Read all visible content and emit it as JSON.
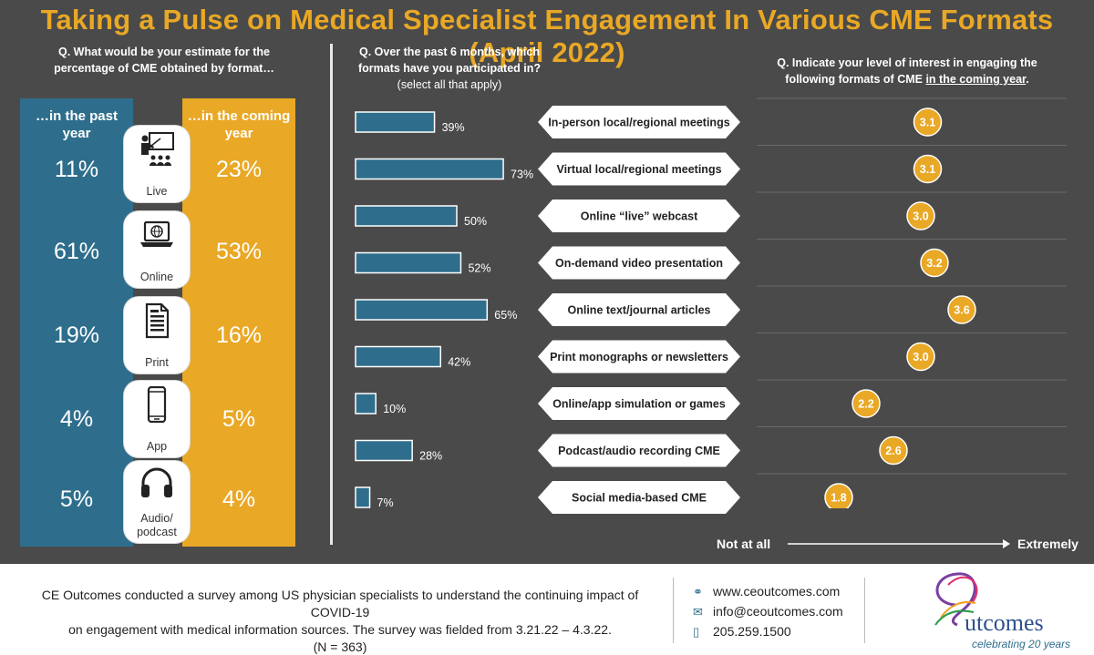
{
  "title": "Taking a Pulse on Medical Specialist Engagement In Various CME Formats (April 2022)",
  "q1": {
    "line1": "Q. What would be your estimate for the",
    "line2": "percentage of CME obtained by format…",
    "past_head_1": "…in the past",
    "past_head_2": "year",
    "coming_head_1": "…in the coming",
    "coming_head_2": "year"
  },
  "q2": {
    "line1": "Q. Over the past 6 months, which",
    "line2": "formats have you participated in?",
    "line3": "(select all that apply)"
  },
  "q3": {
    "line1": "Q. Indicate your level of interest in engaging the",
    "line2_pre": "following formats of CME ",
    "line2_u": "in the coming year",
    "line2_post": "."
  },
  "scale": {
    "low": "Not at all",
    "high": "Extremely"
  },
  "footer": {
    "text1": "CE Outcomes conducted a survey among US physician specialists to understand the continuing impact of COVID-19",
    "text2": "on engagement with medical information sources. The survey was fielded from 3.21.22 – 4.3.22.",
    "text3": "(N = 363)",
    "web": "www.ceoutcomes.com",
    "email": "info@ceoutcomes.com",
    "phone": "205.259.1500",
    "logo_text": "utcomes",
    "tagline": "celebrating 20 years"
  },
  "colors": {
    "blue": "#2e6e8c",
    "gold": "#e9a825",
    "bg": "#4a4a4a"
  },
  "chart_data": [
    {
      "type": "table",
      "title": "Q. What would be your estimate for the percentage of CME obtained by format…",
      "formats": [
        "Live",
        "Online",
        "Print",
        "App",
        "Audio/podcast"
      ],
      "format_label_lines": [
        [
          "Live"
        ],
        [
          "Online"
        ],
        [
          "Print"
        ],
        [
          "App"
        ],
        [
          "Audio/",
          "podcast"
        ]
      ],
      "format_icons": [
        "presenter-icon",
        "laptop-globe-icon",
        "document-icon",
        "smartphone-icon",
        "headphones-icon"
      ],
      "series": [
        {
          "name": "…in the past year",
          "labels": [
            "11%",
            "61%",
            "19%",
            "4%",
            "5%"
          ],
          "values": [
            11,
            61,
            19,
            4,
            5
          ]
        },
        {
          "name": "…in the coming year",
          "labels": [
            "23%",
            "53%",
            "16%",
            "5%",
            "4%"
          ],
          "values": [
            23,
            53,
            16,
            5,
            4
          ]
        }
      ]
    },
    {
      "type": "bar",
      "title": "Q. Over the past 6 months, which formats have you participated in?",
      "categories": [
        "In-person local/regional meetings",
        "Virtual local/regional meetings",
        "Online “live” webcast",
        "On-demand video presentation",
        "Online text/journal articles",
        "Print monographs or newsletters",
        "Online/app simulation or games",
        "Podcast/audio recording CME",
        "Social media-based CME"
      ],
      "values": [
        39,
        73,
        50,
        52,
        65,
        42,
        10,
        28,
        7
      ],
      "labels": [
        "39%",
        "73%",
        "50%",
        "52%",
        "65%",
        "42%",
        "10%",
        "28%",
        "7%"
      ],
      "xlim": [
        0,
        100
      ]
    },
    {
      "type": "scatter",
      "title": "Q. Indicate your level of interest in engaging the following formats of CME in the coming year.",
      "categories": [
        "In-person local/regional meetings",
        "Virtual local/regional meetings",
        "Online “live” webcast",
        "On-demand video presentation",
        "Online text/journal articles",
        "Print monographs or newsletters",
        "Online/app simulation or games",
        "Podcast/audio recording CME",
        "Social media-based CME"
      ],
      "values": [
        3.1,
        3.1,
        3.0,
        3.2,
        3.6,
        3.0,
        2.2,
        2.6,
        1.8
      ],
      "labels": [
        "3.1",
        "3.1",
        "3.0",
        "3.2",
        "3.6",
        "3.0",
        "2.2",
        "2.6",
        "1.8"
      ],
      "xlim": [
        1,
        5
      ],
      "grid": true
    }
  ]
}
